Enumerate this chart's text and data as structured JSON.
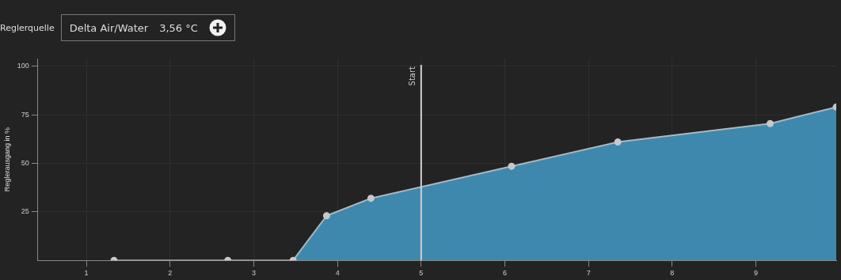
{
  "chart_data": {
    "type": "area",
    "ylabel": "Reglerausgang in %",
    "annotations": [
      "Reglerquelle",
      "Delta Air/Water",
      "3,56 °C"
    ],
    "x": [
      1.33,
      2.69,
      3.47,
      3.87,
      4.4,
      6.08,
      7.35,
      9.17,
      9.96
    ],
    "series": [
      {
        "color": "#3f88ad",
        "values": [
          0,
          0,
          0,
          23,
          32,
          48.5,
          61,
          70.5,
          79
        ]
      }
    ],
    "xlim": [
      0.42,
      9.96
    ],
    "xticks": [
      1,
      2,
      3,
      4,
      5,
      6,
      7,
      8,
      9
    ],
    "ylim": [
      0,
      104
    ],
    "yticks": [
      25,
      50,
      75,
      100
    ],
    "ref_lines": [
      {
        "axis": "x",
        "value": 5,
        "label": "Start",
        "color": "#d0d0d0"
      }
    ],
    "grid": true,
    "marker": "circle",
    "legend": false
  }
}
